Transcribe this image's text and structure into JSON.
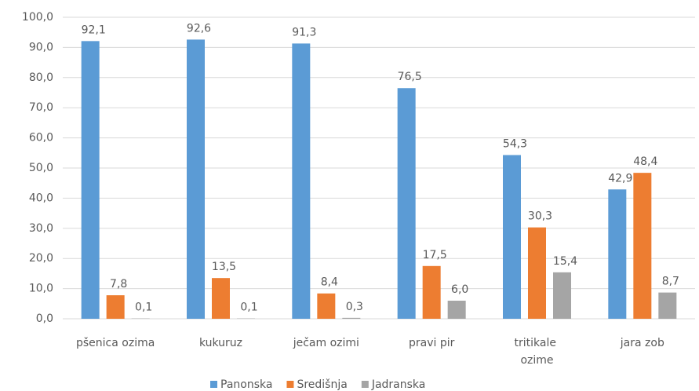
{
  "chart_data": {
    "type": "bar",
    "categories": [
      "pšenica ozima",
      "kukuruz",
      "ječam ozimi",
      "pravi pir",
      "tritikale ozime",
      "jara zob"
    ],
    "series": [
      {
        "name": "Panonska",
        "color": "#5b9bd5",
        "values": [
          92.1,
          92.6,
          91.3,
          76.5,
          54.3,
          42.9
        ],
        "value_labels": [
          "92,1",
          "92,6",
          "91,3",
          "76,5",
          "54,3",
          "42,9"
        ]
      },
      {
        "name": "Središnja",
        "color": "#ed7d31",
        "values": [
          7.8,
          13.5,
          8.4,
          17.5,
          30.3,
          48.4
        ],
        "value_labels": [
          "7,8",
          "13,5",
          "8,4",
          "17,5",
          "30,3",
          "48,4"
        ]
      },
      {
        "name": "Jadranska",
        "color": "#a5a5a5",
        "values": [
          0.1,
          0.1,
          0.3,
          6.0,
          15.4,
          8.7
        ],
        "value_labels": [
          "0,1",
          "0,1",
          "0,3",
          "6,0",
          "15,4",
          "8,7"
        ]
      }
    ],
    "ylim": [
      0,
      100
    ],
    "yticks": [
      {
        "value": 0,
        "label": "0,0"
      },
      {
        "value": 10,
        "label": "10,0"
      },
      {
        "value": 20,
        "label": "20,0"
      },
      {
        "value": 30,
        "label": "30,0"
      },
      {
        "value": 40,
        "label": "40,0"
      },
      {
        "value": 50,
        "label": "50,0"
      },
      {
        "value": 60,
        "label": "60,0"
      },
      {
        "value": 70,
        "label": "70,0"
      },
      {
        "value": 80,
        "label": "80,0"
      },
      {
        "value": 90,
        "label": "90,0"
      },
      {
        "value": 100,
        "label": "100,0"
      }
    ],
    "grid": true,
    "legend": "bottom"
  }
}
